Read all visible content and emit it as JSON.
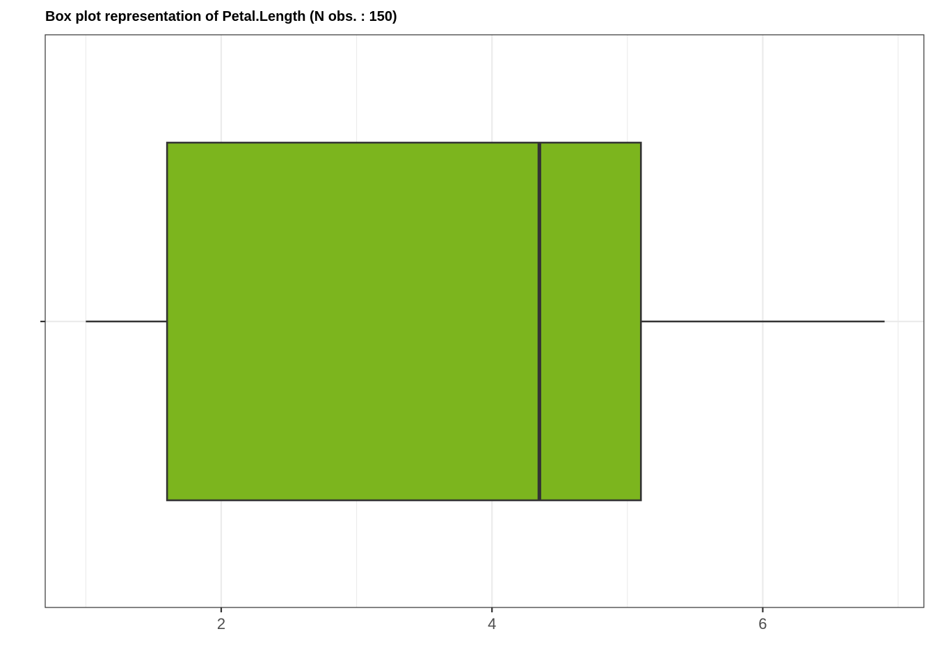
{
  "chart_data": {
    "type": "box",
    "title": "Box plot representation of Petal.Length (N obs. : 150)",
    "orientation": "horizontal",
    "xlim": [
      0.7,
      7.19
    ],
    "x_ticks": [
      2,
      4,
      6
    ],
    "x_minor_ticks": [
      1,
      3,
      5,
      7
    ],
    "grid": true,
    "box": {
      "whisker_low": 1.0,
      "q1": 1.6,
      "median": 4.35,
      "q3": 5.1,
      "whisker_high": 6.9
    },
    "colors": {
      "box_fill": "#7cb51e",
      "box_stroke": "#333333",
      "grid": "#ebebeb",
      "panel_border": "#333333"
    }
  }
}
